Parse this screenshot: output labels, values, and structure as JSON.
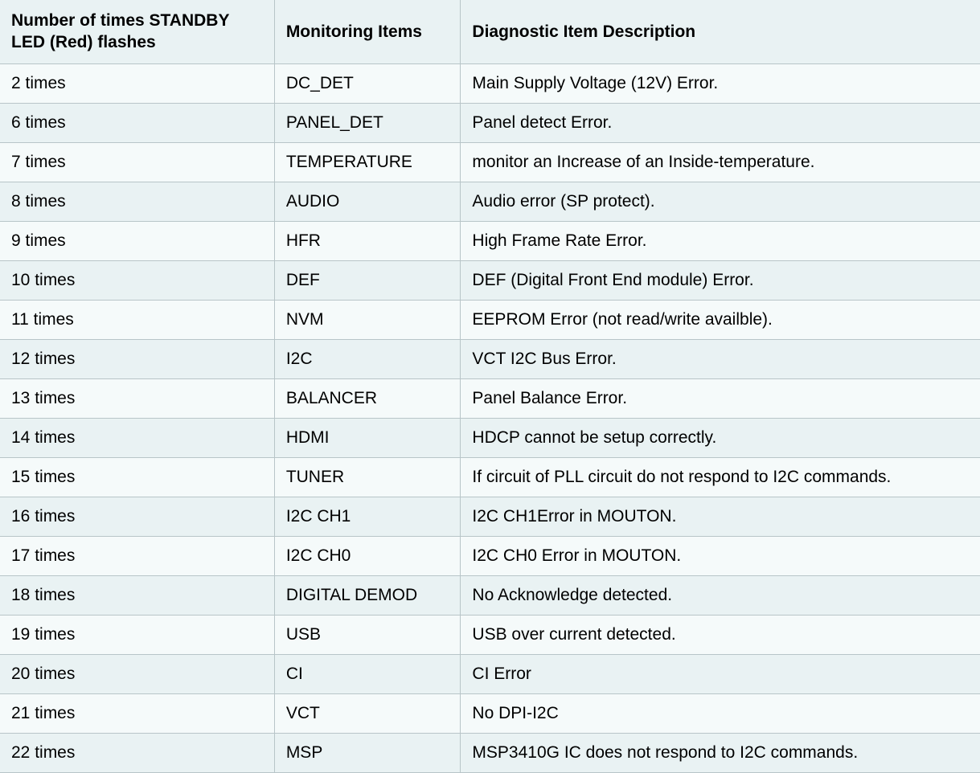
{
  "table": {
    "type": "table",
    "background_color": "#e9f2f3",
    "stripe_colors": [
      "#f5fafa",
      "#e9f2f3"
    ],
    "border_color": "#b8c5c8",
    "text_color": "#000000",
    "font_family": "Helvetica, Arial, sans-serif",
    "header_fontsize": 21,
    "cell_fontsize": 21,
    "header_fontweight": "bold",
    "columns": [
      {
        "label": "Number of times STANDBY LED (Red) flashes",
        "width_pct": 28
      },
      {
        "label": "Monitoring Items",
        "width_pct": 19
      },
      {
        "label": "Diagnostic Item Description",
        "width_pct": 53
      }
    ],
    "rows": [
      [
        "2 times",
        "DC_DET",
        "Main Supply Voltage (12V) Error."
      ],
      [
        "6 times",
        "PANEL_DET",
        "Panel detect Error."
      ],
      [
        "7 times",
        "TEMPERATURE",
        "monitor an Increase of an Inside-temperature."
      ],
      [
        "8 times",
        "AUDIO",
        "Audio error (SP protect)."
      ],
      [
        "9 times",
        "HFR",
        "High Frame Rate Error."
      ],
      [
        "10 times",
        "DEF",
        "DEF (Digital Front End module) Error."
      ],
      [
        "11 times",
        "NVM",
        "EEPROM Error (not read/write availble)."
      ],
      [
        "12 times",
        "I2C",
        "VCT I2C Bus Error."
      ],
      [
        "13 times",
        "BALANCER",
        "Panel Balance Error."
      ],
      [
        "14 times",
        "HDMI",
        "HDCP cannot be setup correctly."
      ],
      [
        "15 times",
        "TUNER",
        "If circuit of PLL circuit  do not respond to I2C commands."
      ],
      [
        "16 times",
        "I2C CH1",
        "I2C CH1Error in MOUTON."
      ],
      [
        "17 times",
        "I2C CH0",
        "I2C CH0 Error in MOUTON."
      ],
      [
        "18 times",
        "DIGITAL DEMOD",
        "No Acknowledge detected."
      ],
      [
        "19 times",
        "USB",
        "USB over current detected."
      ],
      [
        "20 times",
        "CI",
        "CI Error"
      ],
      [
        "21 times",
        "VCT",
        "No DPI-I2C"
      ],
      [
        "22 times",
        "MSP",
        "MSP3410G IC does not respond to I2C commands."
      ]
    ]
  }
}
